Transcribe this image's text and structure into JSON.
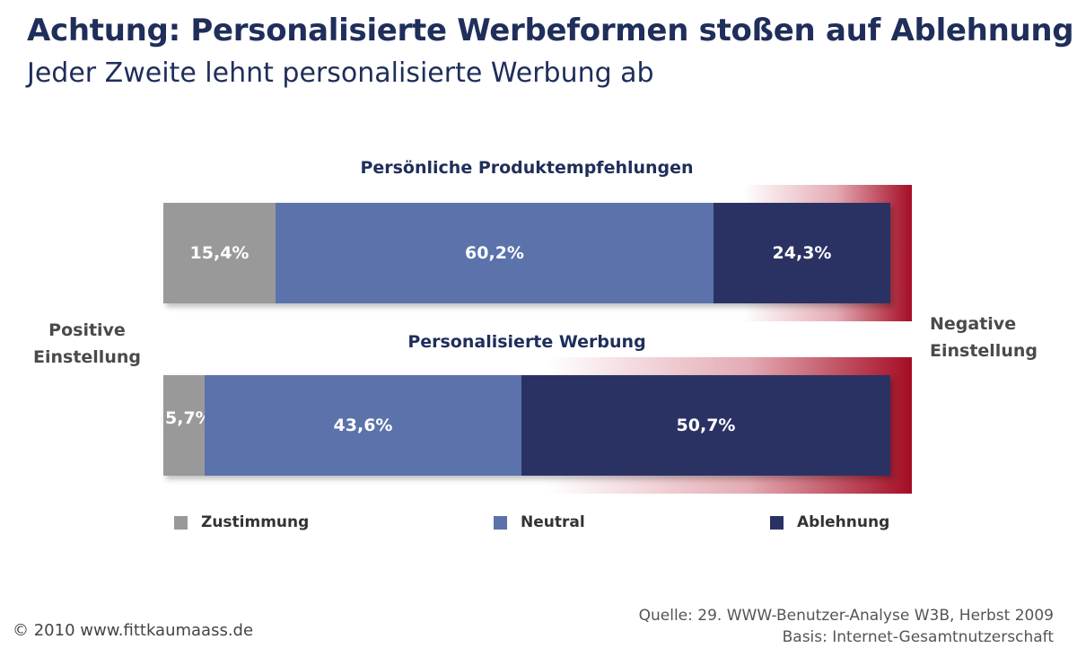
{
  "chart_data": {
    "type": "bar",
    "orientation": "horizontal",
    "stacked": true,
    "percent": true,
    "title": "Achtung: Personalisierte Werbeformen stoßen auf Ablehnung",
    "subtitle": "Jeder Zweite lehnt personalisierte Werbung ab",
    "categories": [
      "Persönliche Produktempfehlungen",
      "Personalisierte Werbung"
    ],
    "series": [
      {
        "name": "Zustimmung",
        "color": "#999999",
        "values": [
          15.4,
          5.7
        ],
        "labels": [
          "15,4%",
          "5,7%"
        ]
      },
      {
        "name": "Neutral",
        "color": "#5b72ab",
        "values": [
          60.2,
          43.6
        ],
        "labels": [
          "60,2%",
          "43,6%"
        ]
      },
      {
        "name": "Ablehnung",
        "color": "#2a3264",
        "values": [
          24.3,
          50.7
        ],
        "labels": [
          "24,3%",
          "50,7%"
        ]
      }
    ],
    "xlim": [
      0,
      100
    ],
    "left_label": "Positive Einstellung",
    "right_label": "Negative Einstellung",
    "legend_position": "bottom",
    "grid": false,
    "source_line1": "Quelle: 29. WWW-Benutzer-Analyse W3B, Herbst 2009",
    "source_line2": "Basis: Internet-Gesamtnutzerschaft"
  },
  "copyright": "© 2010 www.fittkaumaass.de",
  "highlight_color": "#a40d24"
}
